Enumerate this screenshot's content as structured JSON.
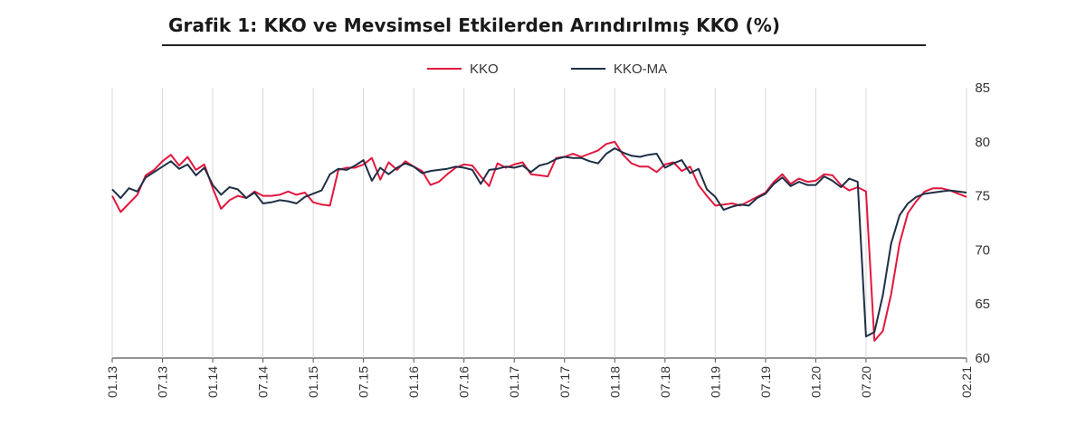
{
  "chart_data": {
    "type": "line",
    "title": "Grafik 1: KKO ve Mevsimsel Etkilerden Arındırılmış KKO (%)",
    "xlabel": "",
    "ylabel": "",
    "ylim": [
      60,
      85
    ],
    "y_ticks": [
      "85",
      "80",
      "75",
      "70",
      "65",
      "60"
    ],
    "x_ticks": [
      "01.13",
      "07.13",
      "01.14",
      "07.14",
      "01.15",
      "07.15",
      "01.16",
      "07.16",
      "01.17",
      "07.17",
      "01.18",
      "07.18",
      "01.19",
      "07.19",
      "01.20",
      "07.20",
      "02.21"
    ],
    "grid": "vertical",
    "legend_position": "top-center",
    "series": [
      {
        "name": "KKO",
        "color": "#e3173e",
        "values": [
          75.0,
          73.5,
          74.3,
          75.1,
          76.9,
          77.4,
          78.2,
          78.8,
          77.8,
          78.6,
          77.4,
          77.9,
          75.7,
          73.8,
          74.6,
          75.0,
          74.8,
          75.4,
          75.0,
          75.0,
          75.1,
          75.4,
          75.1,
          75.3,
          74.4,
          74.2,
          74.1,
          77.4,
          77.6,
          77.6,
          77.9,
          78.5,
          76.5,
          78.1,
          77.4,
          78.2,
          77.7,
          77.3,
          76.0,
          76.3,
          77.0,
          77.6,
          77.9,
          77.8,
          76.8,
          75.9,
          78.0,
          77.6,
          77.9,
          78.1,
          77.0,
          76.9,
          76.8,
          78.5,
          78.6,
          78.9,
          78.6,
          78.9,
          79.2,
          79.8,
          80.0,
          78.8,
          78.0,
          77.7,
          77.7,
          77.2,
          77.9,
          78.1,
          77.3,
          77.7,
          76.0,
          75.0,
          74.1,
          74.2,
          74.3,
          74.1,
          74.5,
          74.9,
          75.3,
          76.3,
          77.0,
          76.1,
          76.6,
          76.3,
          76.4,
          77.0,
          76.9,
          76.0,
          75.5,
          75.8,
          75.4,
          61.6,
          62.5,
          65.9,
          70.6,
          73.4,
          74.5,
          75.4,
          75.7,
          75.7,
          75.5,
          75.2,
          74.9
        ]
      },
      {
        "name": "KKO-MA",
        "color": "#1f2f45",
        "values": [
          75.6,
          74.8,
          75.7,
          75.4,
          76.7,
          77.2,
          77.7,
          78.2,
          77.5,
          77.9,
          76.9,
          77.6,
          76.0,
          75.1,
          75.8,
          75.6,
          74.8,
          75.3,
          74.3,
          74.4,
          74.6,
          74.5,
          74.3,
          74.9,
          75.2,
          75.5,
          77.0,
          77.5,
          77.4,
          77.8,
          78.3,
          76.4,
          77.6,
          77.0,
          77.6,
          78.0,
          77.7,
          77.1,
          77.3,
          77.4,
          77.5,
          77.7,
          77.6,
          77.4,
          76.1,
          77.4,
          77.5,
          77.7,
          77.6,
          77.8,
          77.2,
          77.8,
          78.0,
          78.4,
          78.6,
          78.5,
          78.5,
          78.2,
          78.0,
          78.9,
          79.4,
          79.0,
          78.7,
          78.6,
          78.8,
          78.9,
          77.6,
          78.0,
          78.3,
          77.1,
          77.5,
          75.6,
          74.9,
          73.7,
          74.0,
          74.2,
          74.1,
          74.8,
          75.2,
          76.1,
          76.7,
          75.9,
          76.3,
          76.0,
          76.0,
          76.8,
          76.4,
          75.8,
          76.6,
          76.3,
          62.0,
          62.4,
          65.8,
          70.6,
          73.2,
          74.3,
          74.9,
          75.2,
          75.3,
          75.4,
          75.5,
          75.4,
          75.3
        ]
      }
    ]
  }
}
